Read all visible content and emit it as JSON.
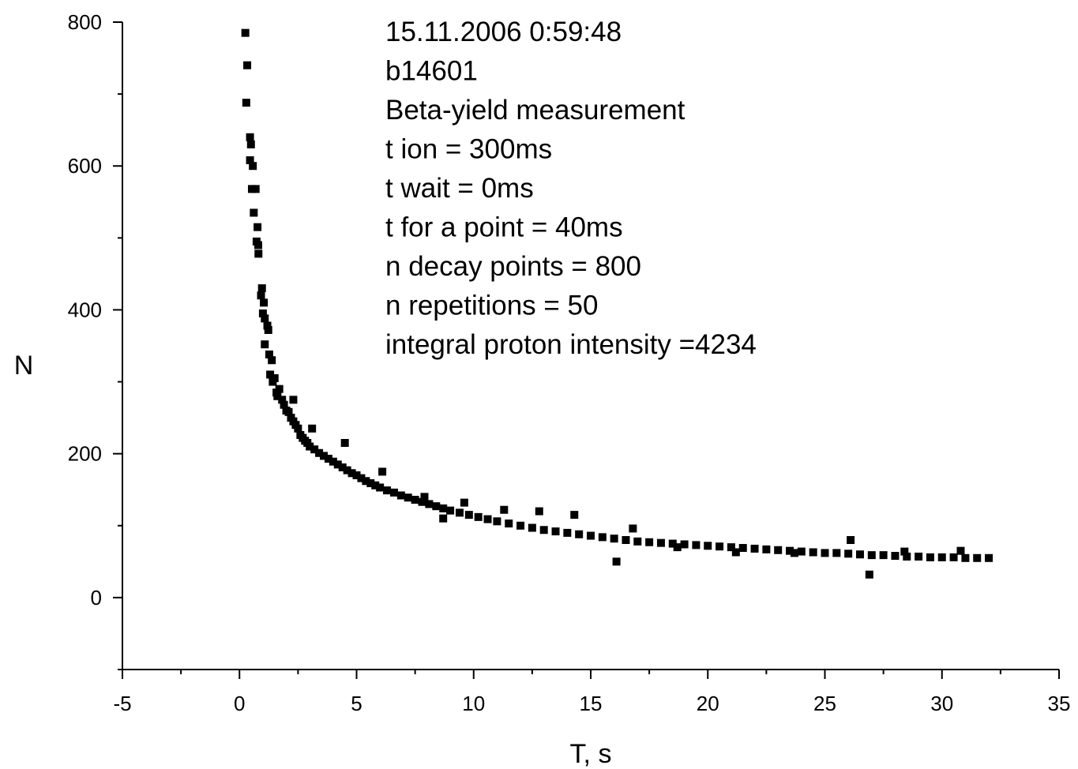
{
  "chart_data": {
    "type": "scatter",
    "title": "",
    "xlabel": "T, s",
    "ylabel": "N",
    "xlim": [
      -5,
      35
    ],
    "ylim": [
      -100,
      800
    ],
    "xticks": [
      -5,
      0,
      5,
      10,
      15,
      20,
      25,
      30,
      35
    ],
    "yticks": [
      0,
      200,
      400,
      600,
      800
    ],
    "grid": false,
    "legend": "none",
    "marker_color": "#000000",
    "annotation": [
      "15.11.2006  0:59:48",
      "b14601",
      "Beta-yield measurement",
      "t ion = 300ms",
      "t wait = 0ms",
      "t for a point = 40ms",
      "n decay points = 800",
      "n repetitions = 50",
      "integral proton intensity =4234"
    ],
    "series": [
      {
        "x": [
          0.25,
          0.33,
          0.29,
          0.45,
          0.49,
          0.45,
          0.57,
          0.53,
          0.69,
          0.61,
          0.77,
          0.73,
          0.8,
          0.81,
          0.96,
          0.92,
          1.04,
          1.0,
          1.08,
          1.08,
          1.19,
          1.23,
          1.27,
          1.31,
          1.38,
          1.42,
          1.5,
          1.58,
          1.62,
          1.7,
          1.82,
          1.9,
          2.0,
          2.1,
          2.2,
          2.3,
          2.4,
          2.5,
          2.6,
          2.7,
          2.8,
          2.9,
          3.0,
          3.2,
          3.4,
          3.6,
          3.8,
          4.0,
          4.2,
          4.4,
          4.6,
          4.8,
          5.0,
          5.2,
          5.4,
          5.6,
          5.8,
          6.0,
          6.3,
          6.6,
          6.9,
          7.2,
          7.5,
          7.8,
          8.1,
          8.4,
          8.7,
          9.0,
          9.4,
          9.8,
          10.2,
          10.6,
          11.0,
          11.5,
          12.0,
          12.5,
          13.0,
          13.5,
          14.0,
          14.5,
          15.0,
          15.5,
          16.0,
          16.5,
          17.0,
          17.5,
          18.0,
          18.5,
          19.0,
          19.5,
          20.0,
          20.5,
          21.0,
          21.5,
          22.0,
          22.5,
          23.0,
          23.5,
          24.0,
          24.5,
          25.0,
          25.5,
          26.0,
          26.5,
          27.0,
          27.5,
          28.0,
          28.5,
          29.0,
          29.5,
          30.0,
          30.5,
          31.0,
          31.5,
          32.0,
          2.3,
          3.1,
          4.5,
          6.1,
          7.9,
          9.6,
          11.3,
          12.8,
          14.3,
          16.8,
          18.7,
          21.2,
          23.7,
          26.1,
          28.4,
          30.8,
          8.7,
          16.1,
          26.9
        ],
        "y": [
          785,
          740,
          688,
          640,
          630,
          608,
          600,
          568,
          568,
          535,
          515,
          495,
          490,
          478,
          430,
          420,
          410,
          395,
          388,
          352,
          378,
          372,
          338,
          310,
          330,
          300,
          305,
          285,
          280,
          290,
          275,
          268,
          260,
          258,
          250,
          245,
          240,
          235,
          226,
          222,
          218,
          215,
          210,
          206,
          201,
          197,
          193,
          189,
          185,
          181,
          177,
          173,
          170,
          166,
          162,
          159,
          156,
          153,
          149,
          146,
          142,
          139,
          136,
          133,
          130,
          127,
          124,
          121,
          118,
          115,
          112,
          109,
          106,
          103,
          100,
          97,
          94,
          92,
          90,
          88,
          86,
          84,
          82,
          80,
          78,
          77,
          76,
          75,
          74,
          73,
          72,
          71,
          70,
          69,
          68,
          67,
          66,
          65,
          64,
          63,
          62,
          62,
          61,
          60,
          59,
          59,
          58,
          57,
          57,
          56,
          56,
          56,
          55,
          55,
          55,
          275,
          235,
          215,
          175,
          140,
          132,
          122,
          120,
          115,
          96,
          70,
          63,
          62,
          80,
          64,
          65,
          110,
          50,
          32
        ]
      }
    ]
  }
}
